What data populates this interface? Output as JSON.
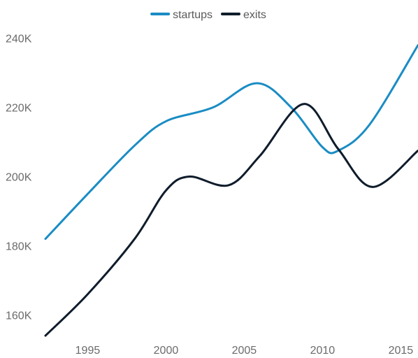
{
  "chart_data": {
    "type": "line",
    "title": "",
    "xlabel": "",
    "ylabel": "",
    "xlim": [
      1992.3,
      2016.1
    ],
    "ylim": [
      153000,
      245000
    ],
    "x_ticks": [
      1995,
      2000,
      2005,
      2010,
      2015
    ],
    "y_ticks": [
      160000,
      180000,
      200000,
      220000,
      240000
    ],
    "x_tick_labels": [
      "1995",
      "2000",
      "2005",
      "2010",
      "2015"
    ],
    "y_tick_labels": [
      "160K",
      "180K",
      "200K",
      "220K",
      "240K"
    ],
    "grid": false,
    "legend_position": "top-center",
    "series": [
      {
        "name": "startups",
        "color": "#1a8cc4",
        "points": [
          [
            1992.3,
            182000
          ],
          [
            1995,
            195000
          ],
          [
            1998,
            209000
          ],
          [
            2000,
            216000
          ],
          [
            2003,
            220000
          ],
          [
            2005.8,
            227000
          ],
          [
            2008,
            220000
          ],
          [
            2010,
            208500
          ],
          [
            2011,
            207500
          ],
          [
            2013,
            215000
          ],
          [
            2016.1,
            238000
          ]
        ]
      },
      {
        "name": "exits",
        "color": "#0f1c2b",
        "points": [
          [
            1992.3,
            154000
          ],
          [
            1995,
            166000
          ],
          [
            1998,
            182000
          ],
          [
            2000,
            196000
          ],
          [
            2001.5,
            200000
          ],
          [
            2004,
            197500
          ],
          [
            2006,
            206000
          ],
          [
            2008.8,
            221000
          ],
          [
            2011,
            208000
          ],
          [
            2013.2,
            197000
          ],
          [
            2016.1,
            207500
          ]
        ]
      }
    ]
  }
}
